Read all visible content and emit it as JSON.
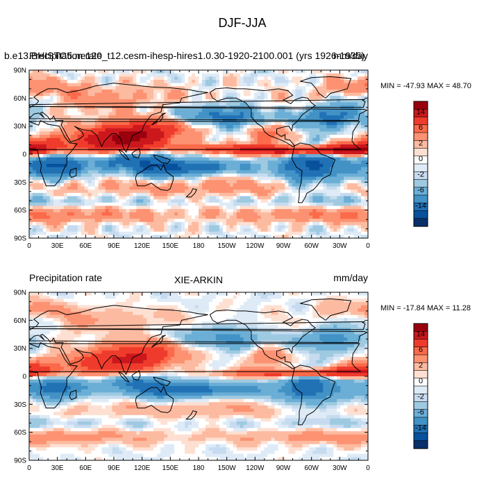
{
  "chart_data": {
    "type": "heatmap",
    "title": "DJF-JJA",
    "panels": [
      {
        "left_label": "b.e13.BHISTC5.ne120_t12.cesm-ihesp-hires1.0.30-1920-2100.001 (yrs 1926-1935)",
        "left_label_overlap": "Precipitation rate",
        "center_label": "",
        "right_label": "mm/day",
        "min_max": "MIN = -47.93 MAX =  48.70",
        "field": "model"
      },
      {
        "left_label": "Precipitation rate",
        "left_label_overlap": "",
        "center_label": "XIE-ARKIN",
        "right_label": "mm/day",
        "min_max": "MIN = -17.84 MAX =  11.28",
        "field": "obs"
      }
    ],
    "x_ticks": [
      "0",
      "30E",
      "60E",
      "90E",
      "120E",
      "150E",
      "180",
      "150W",
      "120W",
      "90W",
      "60W",
      "30W",
      "0"
    ],
    "y_ticks": [
      "90N",
      "60N",
      "30N",
      "0",
      "30S",
      "60S",
      "90S"
    ],
    "colorbar": {
      "labels": [
        "14",
        "6",
        "2",
        "0",
        "-2",
        "-6",
        "-14"
      ],
      "colors": [
        "#99000d",
        "#cb181d",
        "#ef3b2c",
        "#fb6a4a",
        "#fc9272",
        "#fcbba1",
        "#fee0d2",
        "#ffffff",
        "#deebf7",
        "#c6dbef",
        "#9ecae1",
        "#6baed6",
        "#4292c6",
        "#2171b5",
        "#08519c",
        "#08306b"
      ]
    }
  }
}
